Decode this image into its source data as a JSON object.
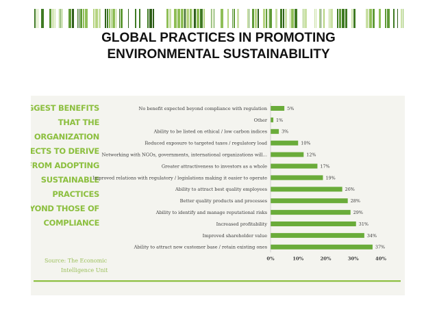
{
  "slide": {
    "title_lines": [
      "GLOBAL PRACTICES IN PROMOTING",
      "ENVIRONMENTAL SUSTAINABILITY"
    ]
  },
  "colors": {
    "bar": "#6aac3a",
    "accent_line": "#8cbf3f",
    "side_title": "#8cbf3f",
    "panel_background": "#f4f4ef"
  },
  "chart_data": {
    "type": "bar",
    "orientation": "horizontal",
    "title_lines": [
      "BIGGEST BENEFITS",
      "THAT THE",
      "ORGANIZATION",
      "EXPECTS TO DERIVE",
      "FROM ADOPTING",
      "SUSTAINABLE",
      "PRACTICES",
      "BEYOND THOSE OF",
      "COMPLIANCE"
    ],
    "source_lines": [
      "Source: The Economic",
      "Intelligence Unit"
    ],
    "categories": [
      "No benefit expected beyond compliance with regulation",
      "Other",
      "Ability to be listed on ethical / low carbon indices",
      "Reduced exposure to targeted taxes / regulatory load",
      "Networking with NGOs, governments, international organizations will...",
      "Greater attractiveness to investors as a whole",
      "Improved relations with regulatory / legislations making it easier to operate",
      "Ability to attract best quality employees",
      "Better quality products and processes",
      "Ability to identify and manage reputational risks",
      "Increased profitability",
      "Improved shareholder value",
      "Ability to attract new customer base / retain existing ones"
    ],
    "values": [
      5,
      1,
      3,
      10,
      12,
      17,
      19,
      26,
      28,
      29,
      31,
      34,
      37
    ],
    "value_labels": [
      "5%",
      "1%",
      "3%",
      "10%",
      "12%",
      "17%",
      "19%",
      "26%",
      "28%",
      "29%",
      "31%",
      "34%",
      "37%"
    ],
    "xlim": [
      0,
      40
    ],
    "xticks": [
      0,
      10,
      20,
      30,
      40
    ],
    "xtick_labels": [
      "0%",
      "10%",
      "20%",
      "30%",
      "40%"
    ],
    "grid": false,
    "legend": "none"
  }
}
